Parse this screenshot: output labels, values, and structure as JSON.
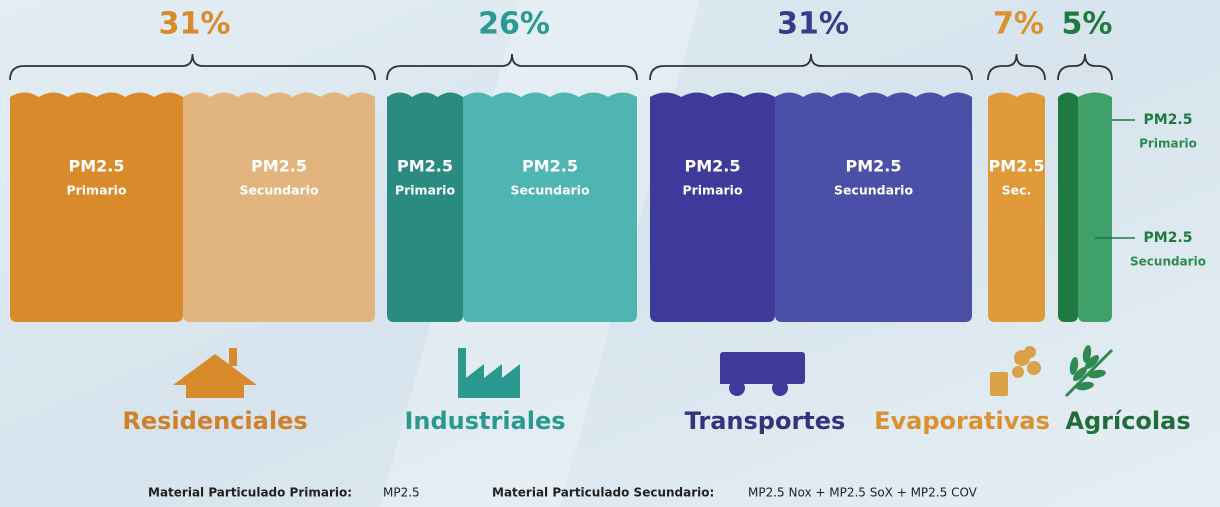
{
  "groups": [
    {
      "percent": "31%",
      "name": "Residenciales",
      "segments": [
        {
          "title": "PM2.5",
          "subtitle": "Primario"
        },
        {
          "title": "PM2.5",
          "subtitle": "Secundario"
        }
      ]
    },
    {
      "percent": "26%",
      "name": "Industriales",
      "segments": [
        {
          "title": "PM2.5",
          "subtitle": "Primario"
        },
        {
          "title": "PM2.5",
          "subtitle": "Secundario"
        }
      ]
    },
    {
      "percent": "31%",
      "name": "Transportes",
      "segments": [
        {
          "title": "PM2.5",
          "subtitle": "Primario"
        },
        {
          "title": "PM2.5",
          "subtitle": "Secundario"
        }
      ]
    },
    {
      "percent": "7%",
      "name": "Evaporativas",
      "segments": [
        {
          "title": "PM2.5",
          "subtitle": "Sec."
        }
      ]
    },
    {
      "percent": "5%",
      "name": "Agrícolas",
      "segments": [
        {
          "title": "PM2.5",
          "subtitle": "Primario"
        },
        {
          "title": "PM2.5",
          "subtitle": "Secundario"
        }
      ]
    }
  ],
  "legend": [
    {
      "term": "Material Particulado Primario:",
      "definition": "MP2.5"
    },
    {
      "term": "Material Particulado Secundario:",
      "definition": "MP2.5 Nox + MP2.5 SoX + MP2.5 COV"
    }
  ]
}
